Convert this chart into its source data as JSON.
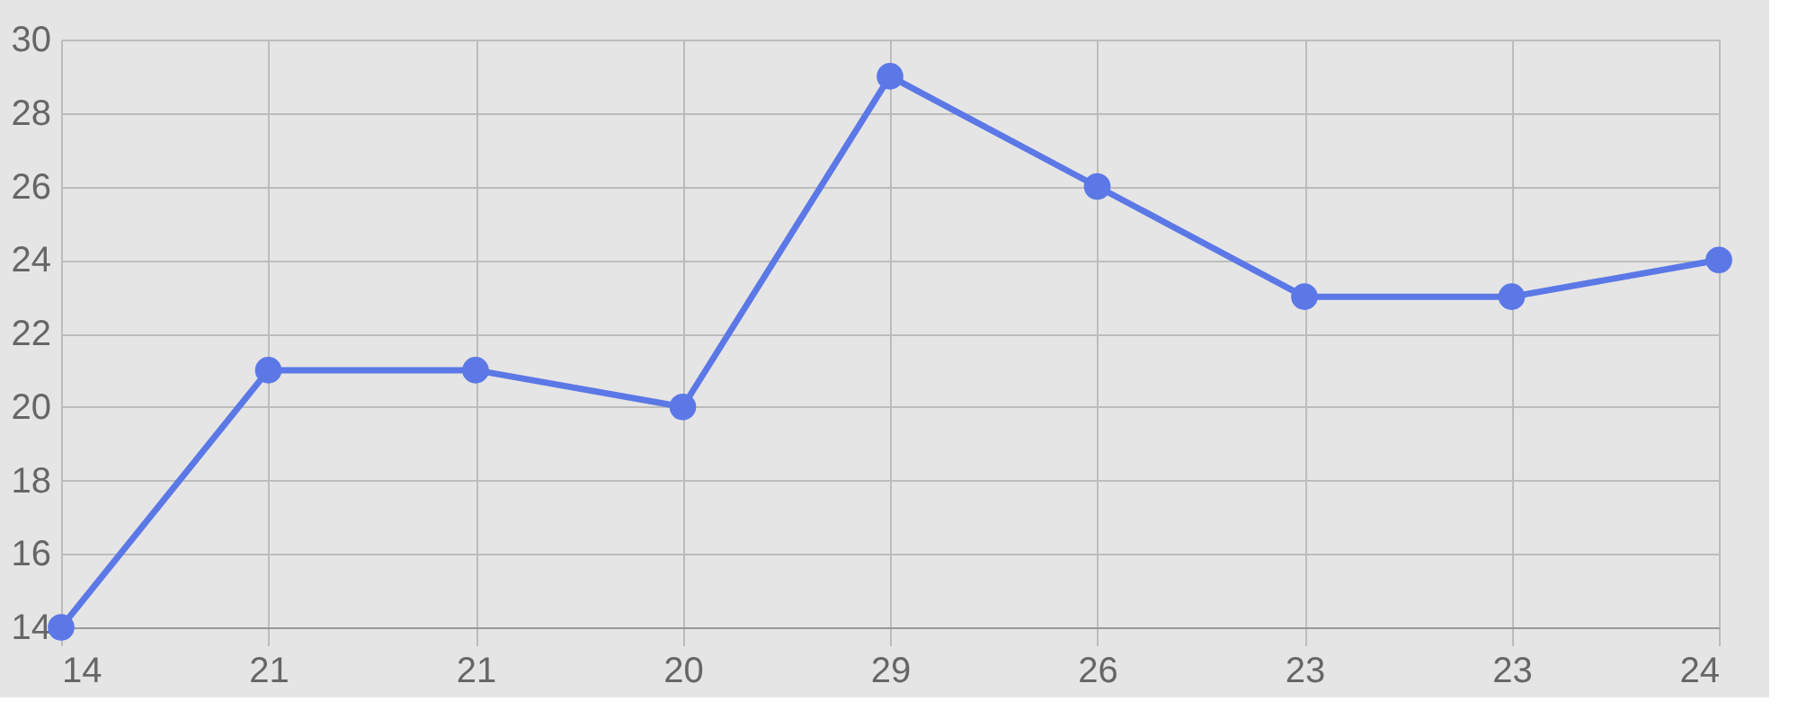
{
  "chart_data": {
    "type": "line",
    "categories": [
      "14",
      "21",
      "21",
      "20",
      "29",
      "26",
      "23",
      "23",
      "24"
    ],
    "series": [
      {
        "color": "#5b78e6",
        "values": [
          14,
          21,
          21,
          20,
          29,
          26,
          23,
          23,
          24
        ]
      }
    ],
    "ylim": [
      14,
      30
    ],
    "yticks": [
      14,
      16,
      18,
      20,
      22,
      24,
      26,
      28,
      30
    ],
    "grid": true,
    "marker": "circle",
    "line_style": "solid"
  }
}
